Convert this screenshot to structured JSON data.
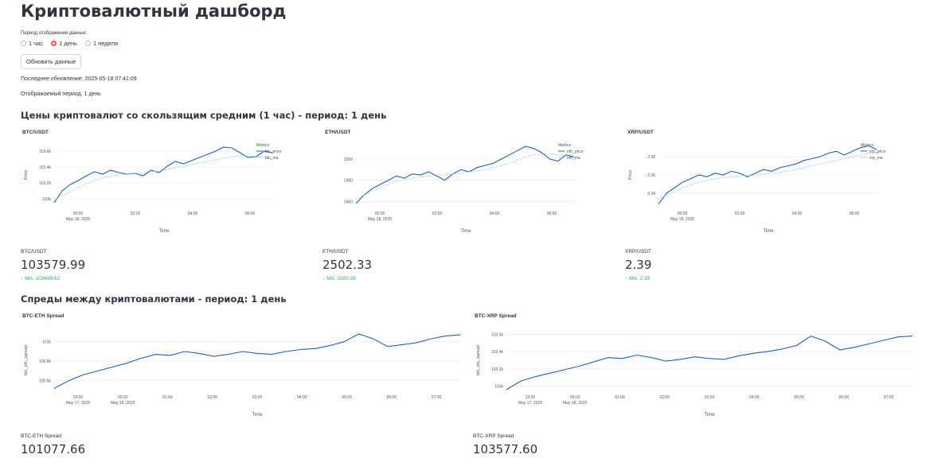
{
  "title": "Криптовалютный дашборд",
  "period": {
    "label": "Период отображения данных:",
    "options": [
      "1 час",
      "1 день",
      "1 неделя"
    ],
    "selected": 1
  },
  "refresh_button": "Обновить данные",
  "last_update": "Последнее обновление: 2025-05-18 07:41:09",
  "shown_period": "Отображаемый период: 1 день",
  "prices_header": "Цены криптовалют со скользящим средним (1 час) - период: 1 день",
  "spreads_header": "Спреды между криптовалютами - период: 1 день",
  "accent_color": "#ff4b4b",
  "line_color": "#1f5fbf",
  "ma_color": "#8ec5ef",
  "metrics": [
    {
      "label": "BTC/USDT",
      "value": "103579.99",
      "delta": "MA: 103499.62"
    },
    {
      "label": "ETH/USDT",
      "value": "2502.33",
      "delta": "MA: 2500.09"
    },
    {
      "label": "XRP/USDT",
      "value": "2.39",
      "delta": "MA: 2.39"
    }
  ],
  "spread_metrics": [
    {
      "label": "BTC-ETH Spread",
      "value": "101077.66"
    },
    {
      "label": "BTC-XRP Spread",
      "value": "103577.60"
    }
  ],
  "chart_data": [
    {
      "type": "line",
      "title": "BTC/USDT",
      "xlabel": "Time",
      "ylabel": "Price",
      "xticks": [
        "00:00\nMay 18, 2025",
        "02:00",
        "04:00",
        "06:00"
      ],
      "yticks": [
        "103k",
        "103.2k",
        "103.4k",
        "103.6k"
      ],
      "ylim": [
        102900,
        103700
      ],
      "legend_title": "Metrics",
      "series": [
        {
          "name": "btc_price",
          "values": [
            102950,
            103100,
            103180,
            103230,
            103290,
            103340,
            103310,
            103360,
            103330,
            103310,
            103320,
            103290,
            103360,
            103330,
            103410,
            103470,
            103440,
            103480,
            103520,
            103560,
            103600,
            103650,
            103640,
            103580,
            103520,
            103530,
            103600,
            103580
          ]
        },
        {
          "name": "btc_ma",
          "values": [
            102980,
            103040,
            103090,
            103140,
            103190,
            103230,
            103260,
            103280,
            103300,
            103310,
            103320,
            103330,
            103340,
            103350,
            103370,
            103390,
            103410,
            103430,
            103450,
            103470,
            103490,
            103510,
            103530,
            103540,
            103540,
            103530,
            103520,
            103500
          ]
        }
      ]
    },
    {
      "type": "line",
      "title": "ETH/USDT",
      "xlabel": "Time",
      "ylabel": "",
      "xticks": [
        "00:00\nMay 18, 2025",
        "02:00",
        "04:00",
        "06:00"
      ],
      "yticks": [
        "2460",
        "2480",
        "2500"
      ],
      "ylim": [
        2455,
        2515
      ],
      "legend_title": "Metrics",
      "series": [
        {
          "name": "eth_price",
          "values": [
            2458,
            2466,
            2472,
            2476,
            2480,
            2484,
            2482,
            2486,
            2485,
            2488,
            2484,
            2480,
            2486,
            2490,
            2488,
            2492,
            2494,
            2496,
            2500,
            2504,
            2508,
            2512,
            2510,
            2506,
            2500,
            2498,
            2504,
            2502
          ]
        },
        {
          "name": "eth_ma",
          "values": [
            2462,
            2466,
            2470,
            2473,
            2476,
            2479,
            2481,
            2482,
            2483,
            2484,
            2485,
            2485,
            2486,
            2487,
            2488,
            2489,
            2490,
            2492,
            2494,
            2496,
            2499,
            2502,
            2504,
            2505,
            2505,
            2504,
            2503,
            2501
          ]
        }
      ]
    },
    {
      "type": "line",
      "title": "XRP/USDT",
      "xlabel": "Time",
      "ylabel": "Price",
      "xticks": [
        "00:00\nMay 18, 2025",
        "02:00",
        "04:00",
        "06:00"
      ],
      "yticks": [
        "2.34",
        "2.36",
        "2.38"
      ],
      "ylim": [
        2.325,
        2.395
      ],
      "legend_title": "Metrics",
      "series": [
        {
          "name": "xrp_price",
          "values": [
            2.328,
            2.34,
            2.346,
            2.352,
            2.356,
            2.36,
            2.358,
            2.362,
            2.36,
            2.364,
            2.362,
            2.358,
            2.362,
            2.366,
            2.364,
            2.368,
            2.37,
            2.372,
            2.376,
            2.378,
            2.38,
            2.384,
            2.386,
            2.382,
            2.386,
            2.39,
            2.392,
            2.388
          ]
        },
        {
          "name": "xrp_ma",
          "values": [
            2.334,
            2.338,
            2.342,
            2.346,
            2.349,
            2.352,
            2.354,
            2.356,
            2.357,
            2.358,
            2.359,
            2.359,
            2.36,
            2.361,
            2.362,
            2.363,
            2.364,
            2.366,
            2.368,
            2.37,
            2.372,
            2.374,
            2.376,
            2.378,
            2.38,
            2.382,
            2.384,
            2.385
          ]
        }
      ]
    },
    {
      "type": "line",
      "title": "BTC-ETH Spread",
      "xlabel": "Time",
      "ylabel": "btc_eth_spread",
      "xticks": [
        "23:00\nMay 17, 2025",
        "00:00\nMay 18, 2025",
        "01:00",
        "02:00",
        "03:00",
        "04:00",
        "05:00",
        "06:00",
        "07:00"
      ],
      "yticks": [
        "100.6k",
        "100.8k",
        "101k"
      ],
      "ylim": [
        100500,
        101120
      ],
      "series": [
        {
          "name": "BTC-ETH Spread",
          "values": [
            100520,
            100600,
            100660,
            100700,
            100740,
            100780,
            100830,
            100870,
            100860,
            100900,
            100880,
            100850,
            100870,
            100900,
            100880,
            100870,
            100900,
            100920,
            100930,
            100960,
            101000,
            101080,
            101030,
            100950,
            100970,
            100990,
            101030,
            101060,
            101070
          ]
        }
      ]
    },
    {
      "type": "line",
      "title": "BTC-XRP Spread",
      "xlabel": "Time",
      "ylabel": "btc_xrp_spread",
      "xticks": [
        "23:00\nMay 17, 2025",
        "00:00\nMay 18, 2025",
        "01:00",
        "02:00",
        "03:00",
        "04:00",
        "05:00",
        "06:00",
        "07:00"
      ],
      "yticks": [
        "103k",
        "103.2k",
        "103.4k",
        "103.6k"
      ],
      "ylim": [
        102950,
        103650
      ],
      "series": [
        {
          "name": "BTC-XRP Spread",
          "values": [
            102960,
            103060,
            103110,
            103150,
            103190,
            103230,
            103280,
            103330,
            103320,
            103360,
            103330,
            103290,
            103310,
            103340,
            103320,
            103310,
            103350,
            103380,
            103400,
            103430,
            103470,
            103580,
            103520,
            103420,
            103450,
            103490,
            103530,
            103570,
            103580
          ]
        }
      ]
    }
  ]
}
